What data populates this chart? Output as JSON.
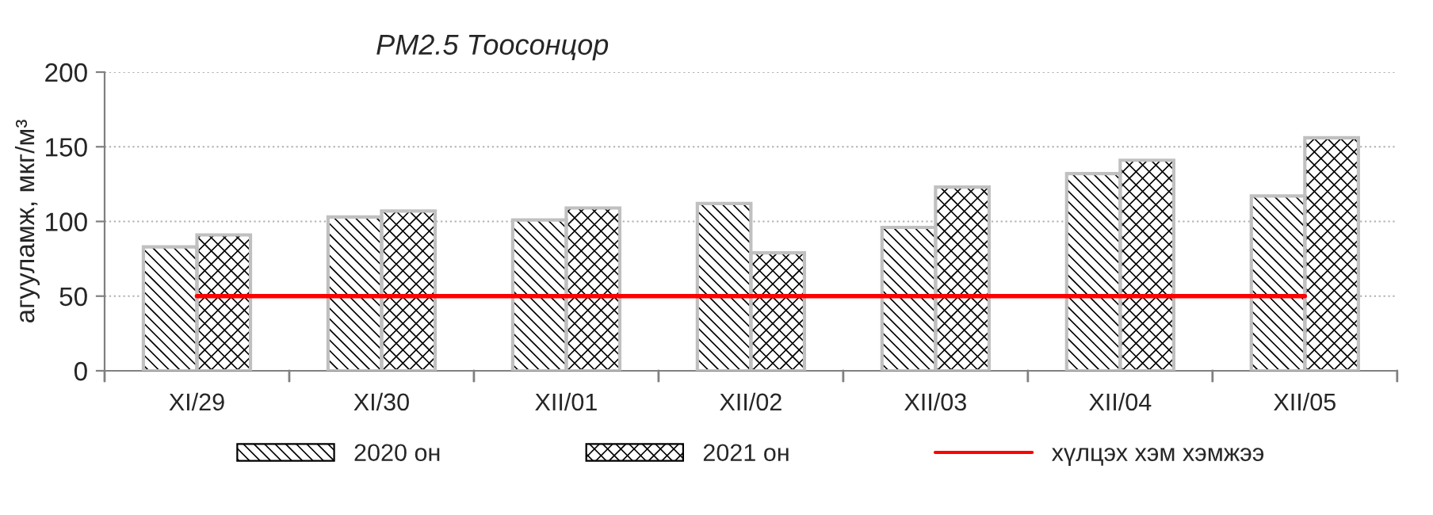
{
  "chart_data": {
    "type": "bar",
    "title": "PM2.5 Тоосонцор",
    "ylabel": "агууламж, мкг/м³",
    "categories": [
      "XI/29",
      "XI/30",
      "XII/01",
      "XII/02",
      "XII/03",
      "XII/04",
      "XII/05"
    ],
    "series": [
      {
        "name": "2020 он",
        "color": "#000000",
        "values": [
          83,
          103,
          101,
          112,
          96,
          132,
          117
        ]
      },
      {
        "name": "2021 он",
        "color": "#000000",
        "values": [
          91,
          107,
          109,
          79,
          123,
          141,
          156
        ]
      },
      {
        "name": "хүлцэх хэм хэмжээ",
        "type": "line",
        "color": "#ff0000",
        "values": [
          50,
          50,
          50,
          50,
          50,
          50,
          50
        ]
      }
    ],
    "ylim": [
      0,
      200
    ],
    "yticks": [
      0,
      50,
      100,
      150,
      200
    ],
    "grid": "y",
    "legend": "bottom"
  }
}
